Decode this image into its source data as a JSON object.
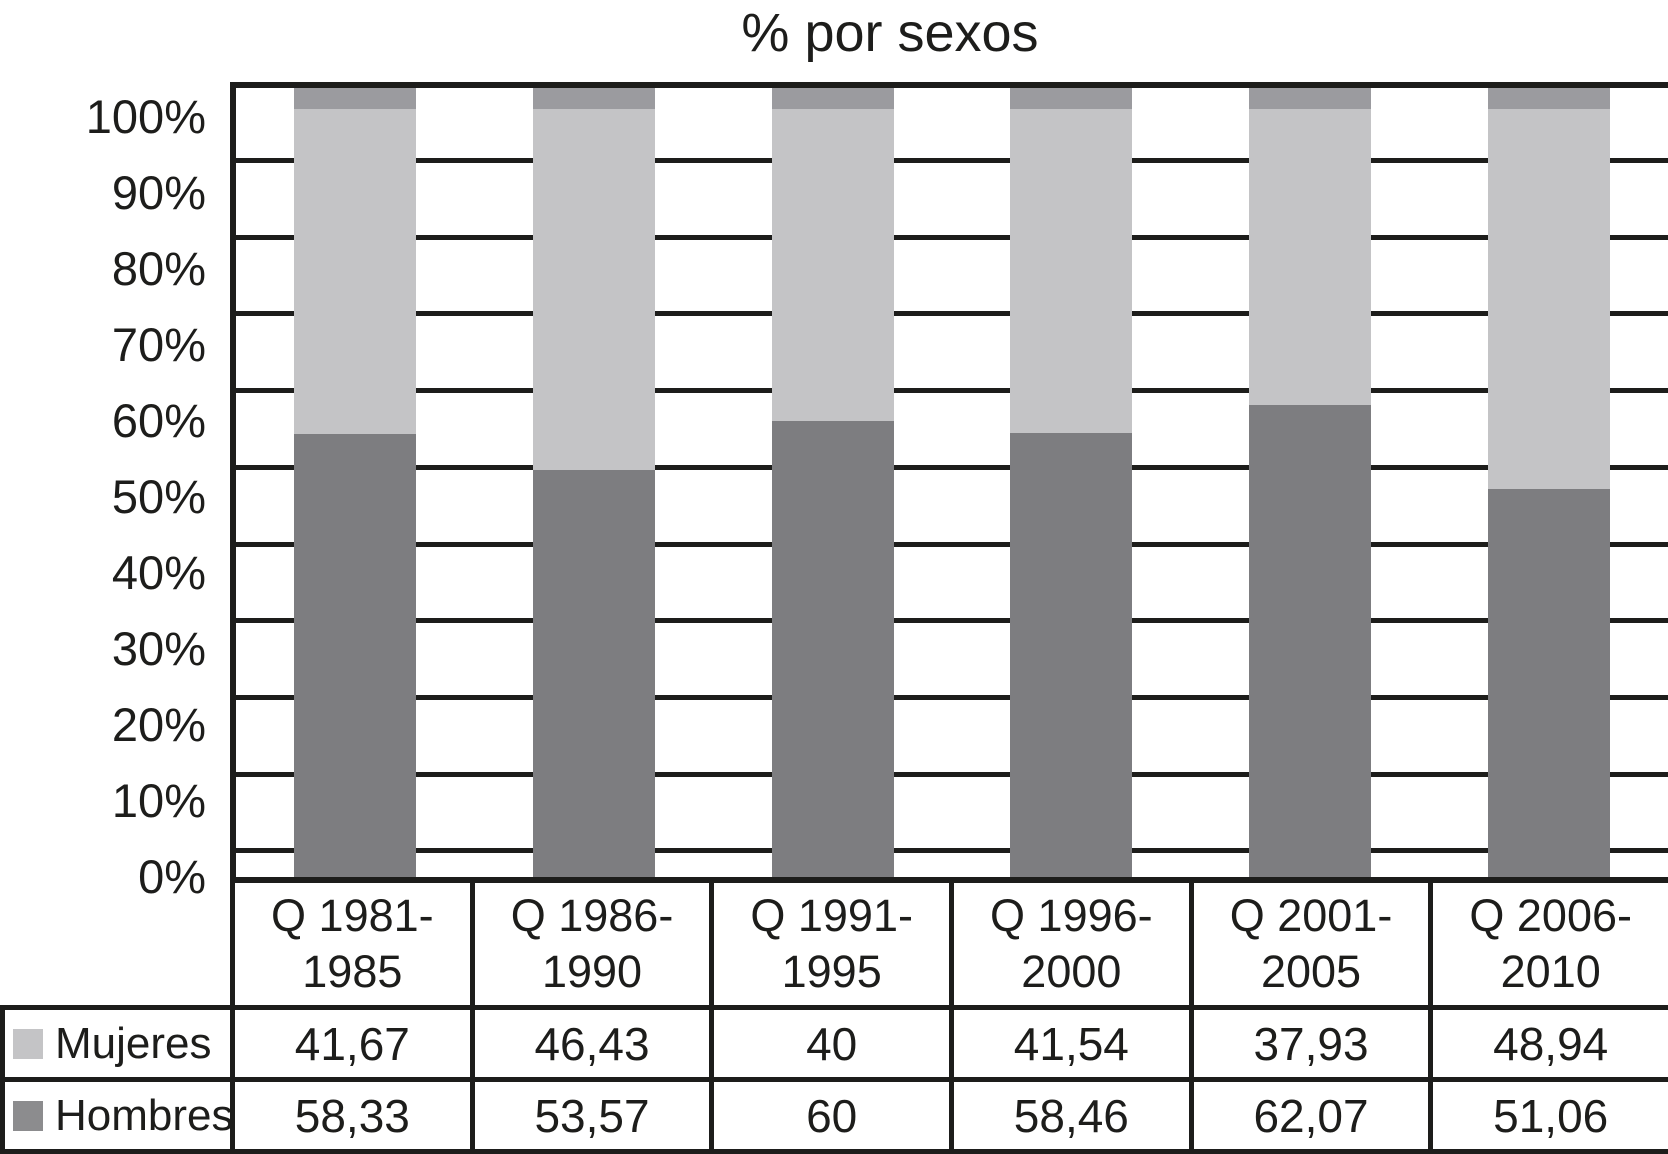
{
  "title": "% por sexos",
  "y_axis": {
    "tick_labels": [
      "100%",
      "90%",
      "80%",
      "70%",
      "60%",
      "50%",
      "40%",
      "30%",
      "20%",
      "10%",
      "0%"
    ]
  },
  "chart_data": {
    "type": "bar",
    "stacked": true,
    "stacked_100_percent": true,
    "title": "% por sexos",
    "categories": [
      "Q 1981-1985",
      "Q 1986-1990",
      "Q 1991-1995",
      "Q 1996-2000",
      "Q 2001-2005",
      "Q 2006-2010"
    ],
    "category_display_lines": [
      [
        "Q 1981-",
        "1985"
      ],
      [
        "Q 1986-",
        "1990"
      ],
      [
        "Q 1991-",
        "1995"
      ],
      [
        "Q 1996-",
        "2000"
      ],
      [
        "Q 2001-",
        "2005"
      ],
      [
        "Q 2006-",
        "2010"
      ]
    ],
    "series": [
      {
        "name": "Hombres",
        "values": [
          58.33,
          53.57,
          60,
          58.46,
          62.07,
          51.06
        ],
        "color": "#7d7d80"
      },
      {
        "name": "Mujeres",
        "values": [
          41.67,
          46.43,
          40,
          41.54,
          37.93,
          48.94
        ],
        "color": "#c4c4c6"
      }
    ],
    "ylim": [
      0,
      100
    ],
    "y_tick_step": 10,
    "y_tick_format": "percent",
    "grid": "horizontal",
    "legend_position": "table-left",
    "bar_top_cap_color": "#9b9b9f"
  },
  "table": {
    "rows": [
      {
        "label": "Mujeres",
        "swatch_color": "#c4c4c6",
        "values": [
          "41,67",
          "46,43",
          "40",
          "41,54",
          "37,93",
          "48,94"
        ]
      },
      {
        "label": "Hombres",
        "swatch_color": "#8c8c8e",
        "values": [
          "58,33",
          "53,57",
          "60",
          "58,46",
          "62,07",
          "51,06"
        ]
      }
    ]
  },
  "colors": {
    "line": "#1d1d1b",
    "background": "#ffffff"
  }
}
